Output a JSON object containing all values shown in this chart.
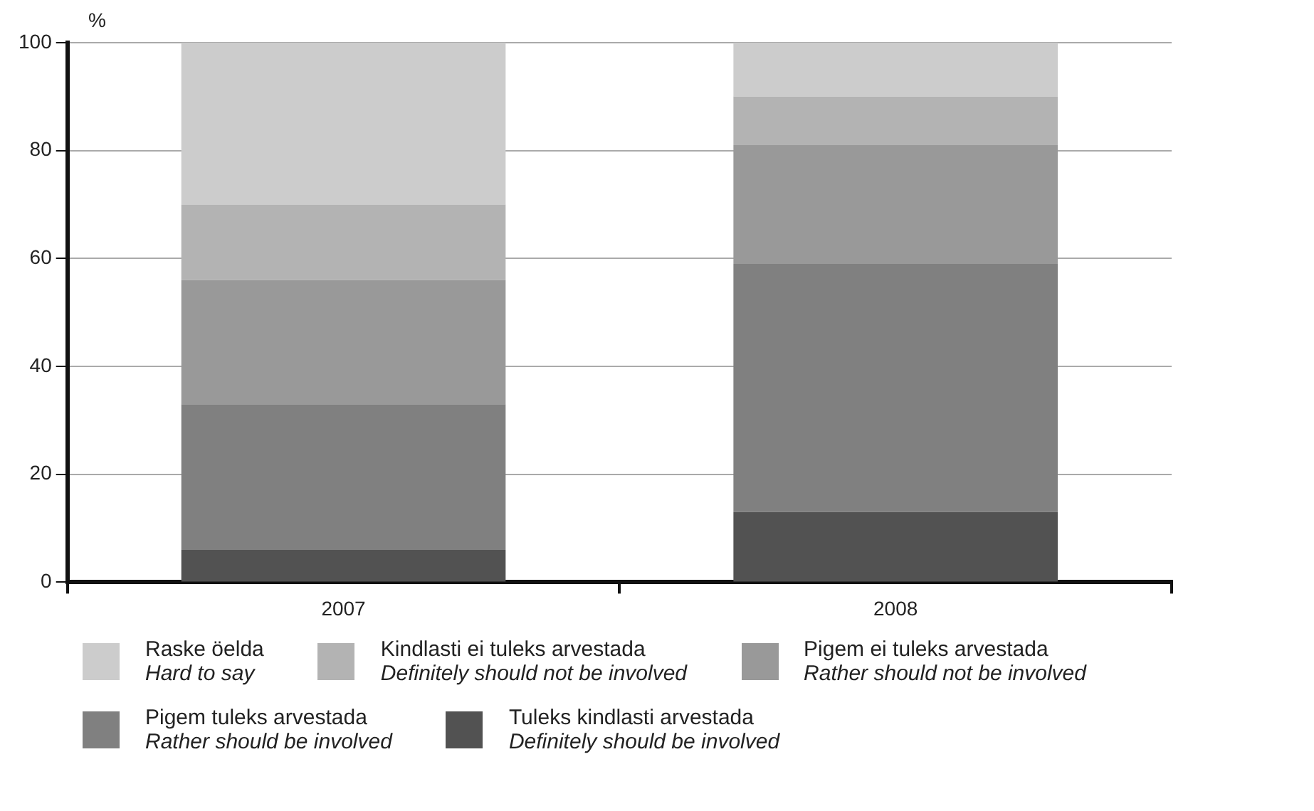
{
  "chart_data": {
    "type": "bar",
    "stacked": true,
    "ylabel": "%",
    "categories": [
      "2007",
      "2008"
    ],
    "ylim": [
      0,
      100
    ],
    "yticks": [
      0,
      20,
      40,
      60,
      80,
      100
    ],
    "grid": "y",
    "legend": "bottom",
    "series": [
      {
        "name": "Tuleks kindlasti arvestada\nDefinitely should be involved",
        "color": "#525252",
        "values": [
          6,
          13
        ]
      },
      {
        "name": "Pigem tuleks arvestada\nRather should be involved",
        "color": "#808080",
        "values": [
          27,
          46
        ]
      },
      {
        "name": "Pigem ei tuleks arvestada\nRather should not be involved",
        "color": "#999999",
        "values": [
          23,
          22
        ]
      },
      {
        "name": "Kindlasti ei tuleks arvestada\nDefinitely should not be involved",
        "color": "#b3b3b3",
        "values": [
          14,
          9
        ]
      },
      {
        "name": "Raske öelda\nHard to say",
        "color": "#cccccc",
        "values": [
          30,
          10
        ]
      }
    ]
  }
}
